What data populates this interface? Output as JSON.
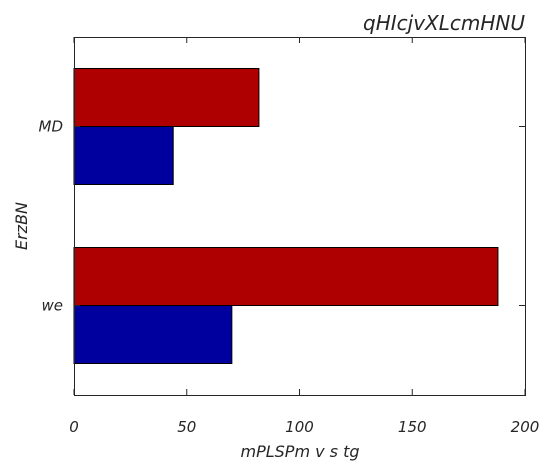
{
  "chart_data": {
    "type": "bar",
    "orientation": "horizontal",
    "title": "qHIcjvXLcmHNU",
    "xlabel": "mPLSPm  v s tg",
    "ylabel": "ErzBN",
    "categories": [
      "we",
      "MD"
    ],
    "xlim": [
      0,
      200
    ],
    "xticks": [
      0,
      50,
      100,
      150,
      200
    ],
    "xtick_labels": [
      "0",
      "50",
      "100",
      "150",
      "200"
    ],
    "grid": false,
    "series": [
      {
        "color": "#00009f",
        "values": [
          70,
          44
        ]
      },
      {
        "color": "#ae0000",
        "values": [
          188,
          82
        ]
      }
    ]
  }
}
